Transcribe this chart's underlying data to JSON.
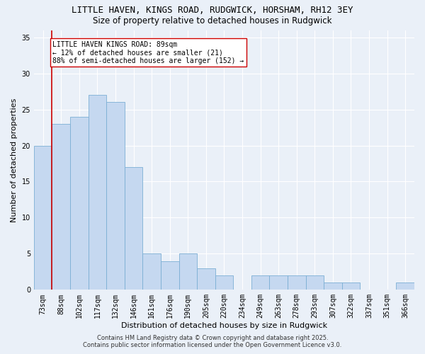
{
  "title_line1": "LITTLE HAVEN, KINGS ROAD, RUDGWICK, HORSHAM, RH12 3EY",
  "title_line2": "Size of property relative to detached houses in Rudgwick",
  "xlabel": "Distribution of detached houses by size in Rudgwick",
  "ylabel": "Number of detached properties",
  "categories": [
    "73sqm",
    "88sqm",
    "102sqm",
    "117sqm",
    "132sqm",
    "146sqm",
    "161sqm",
    "176sqm",
    "190sqm",
    "205sqm",
    "220sqm",
    "234sqm",
    "249sqm",
    "263sqm",
    "278sqm",
    "293sqm",
    "307sqm",
    "322sqm",
    "337sqm",
    "351sqm",
    "366sqm"
  ],
  "values": [
    20,
    23,
    24,
    27,
    26,
    17,
    5,
    4,
    5,
    3,
    2,
    0,
    2,
    2,
    2,
    2,
    1,
    1,
    0,
    0,
    1
  ],
  "bar_color": "#c5d8f0",
  "bar_edge_color": "#7bafd4",
  "vline_color": "#cc0000",
  "vline_x": 0.5,
  "annotation_text": "LITTLE HAVEN KINGS ROAD: 89sqm\n← 12% of detached houses are smaller (21)\n88% of semi-detached houses are larger (152) →",
  "annotation_box_color": "#ffffff",
  "annotation_box_edge": "#cc0000",
  "ylim": [
    0,
    36
  ],
  "yticks": [
    0,
    5,
    10,
    15,
    20,
    25,
    30,
    35
  ],
  "background_color": "#eaf0f8",
  "grid_color": "#ffffff",
  "footer_text": "Contains HM Land Registry data © Crown copyright and database right 2025.\nContains public sector information licensed under the Open Government Licence v3.0.",
  "title_fontsize": 9,
  "subtitle_fontsize": 8.5,
  "tick_fontsize": 7,
  "xlabel_fontsize": 8,
  "ylabel_fontsize": 8,
  "annotation_fontsize": 7,
  "footer_fontsize": 6
}
